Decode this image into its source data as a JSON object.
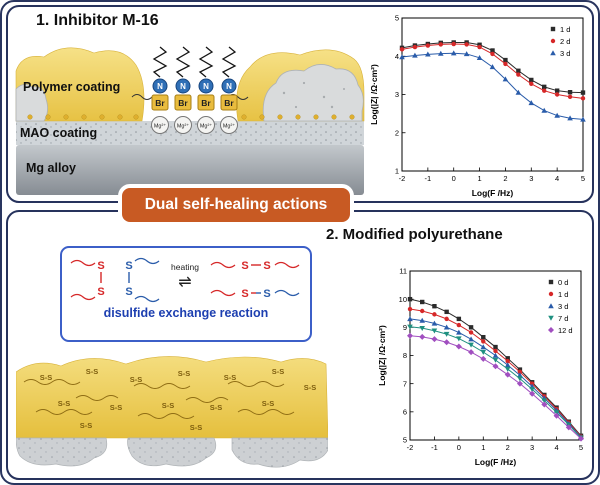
{
  "panel1": {
    "title": "1. Inhibitor M-16",
    "labels": {
      "polymer": "Polymer coating",
      "mao": "MAO coating",
      "mg": "Mg alloy"
    },
    "molecule": {
      "n": "N",
      "br": "Br",
      "mg_ion": "Mg²⁺"
    }
  },
  "banner": {
    "label": "Dual self-healing actions",
    "color": "#c85a23"
  },
  "panel2": {
    "title": "2. Modified polyurethane",
    "reaction": {
      "heating": "heating",
      "equilibrium": "⇌",
      "s": "S",
      "caption": "disulfide exchange reaction"
    },
    "coating": {
      "ss": "S-S"
    }
  },
  "chart_data": [
    {
      "type": "line",
      "title": "",
      "xlabel": "Log(F /Hz)",
      "ylabel": "Log(|Z| /Ω·cm²)",
      "xlim": [
        -2,
        5
      ],
      "ylim": [
        1,
        5
      ],
      "xticks": [
        -2,
        -1,
        0,
        1,
        2,
        3,
        4,
        5
      ],
      "yticks": [
        1,
        2,
        3,
        4,
        5
      ],
      "grid": false,
      "legend_position": "top-right",
      "x": [
        -2,
        -1.5,
        -1,
        -0.5,
        0,
        0.5,
        1,
        1.5,
        2,
        2.5,
        3,
        3.5,
        4,
        4.5,
        5
      ],
      "series": [
        {
          "name": "1 d",
          "color": "#2b2b2b",
          "marker": "square",
          "values": [
            4.22,
            4.28,
            4.32,
            4.35,
            4.36,
            4.36,
            4.3,
            4.15,
            3.9,
            3.62,
            3.38,
            3.2,
            3.1,
            3.06,
            3.05
          ]
        },
        {
          "name": "2 d",
          "color": "#d62728",
          "marker": "circle",
          "values": [
            4.18,
            4.24,
            4.28,
            4.31,
            4.32,
            4.31,
            4.24,
            4.06,
            3.8,
            3.52,
            3.28,
            3.1,
            3.0,
            2.94,
            2.9
          ]
        },
        {
          "name": "3 d",
          "color": "#2a5caa",
          "marker": "triangle",
          "values": [
            3.98,
            4.02,
            4.05,
            4.07,
            4.08,
            4.06,
            3.96,
            3.72,
            3.4,
            3.05,
            2.78,
            2.58,
            2.45,
            2.38,
            2.35
          ]
        }
      ]
    },
    {
      "type": "line",
      "title": "",
      "xlabel": "Log(F /Hz)",
      "ylabel": "Log(|Z| /Ω·cm²)",
      "xlim": [
        -2,
        5
      ],
      "ylim": [
        5,
        11
      ],
      "xticks": [
        -2,
        -1,
        0,
        1,
        2,
        3,
        4,
        5
      ],
      "yticks": [
        5,
        6,
        7,
        8,
        9,
        10,
        11
      ],
      "grid": false,
      "legend_position": "top-right",
      "x": [
        -2,
        -1.5,
        -1,
        -0.5,
        0,
        0.5,
        1,
        1.5,
        2,
        2.5,
        3,
        3.5,
        4,
        4.5,
        5
      ],
      "series": [
        {
          "name": "0 d",
          "color": "#2b2b2b",
          "marker": "square",
          "values": [
            10.0,
            9.9,
            9.75,
            9.55,
            9.3,
            9.0,
            8.65,
            8.3,
            7.9,
            7.5,
            7.05,
            6.6,
            6.15,
            5.65,
            5.15
          ]
        },
        {
          "name": "1 d",
          "color": "#d62728",
          "marker": "circle",
          "values": [
            9.65,
            9.58,
            9.46,
            9.3,
            9.08,
            8.82,
            8.5,
            8.16,
            7.8,
            7.42,
            7.0,
            6.55,
            6.1,
            5.62,
            5.12
          ]
        },
        {
          "name": "3 d",
          "color": "#2a5caa",
          "marker": "triangle",
          "values": [
            9.3,
            9.24,
            9.14,
            9.0,
            8.82,
            8.58,
            8.3,
            8.0,
            7.66,
            7.3,
            6.9,
            6.48,
            6.05,
            5.58,
            5.1
          ]
        },
        {
          "name": "7 d",
          "color": "#1f9080",
          "marker": "triangle-down",
          "values": [
            9.02,
            8.97,
            8.88,
            8.76,
            8.6,
            8.38,
            8.12,
            7.84,
            7.52,
            7.18,
            6.8,
            6.4,
            5.98,
            5.54,
            5.08
          ]
        },
        {
          "name": "12 d",
          "color": "#a14fc0",
          "marker": "diamond",
          "values": [
            8.7,
            8.66,
            8.58,
            8.47,
            8.32,
            8.12,
            7.88,
            7.62,
            7.32,
            7.0,
            6.64,
            6.26,
            5.86,
            5.45,
            5.05
          ]
        }
      ]
    }
  ]
}
